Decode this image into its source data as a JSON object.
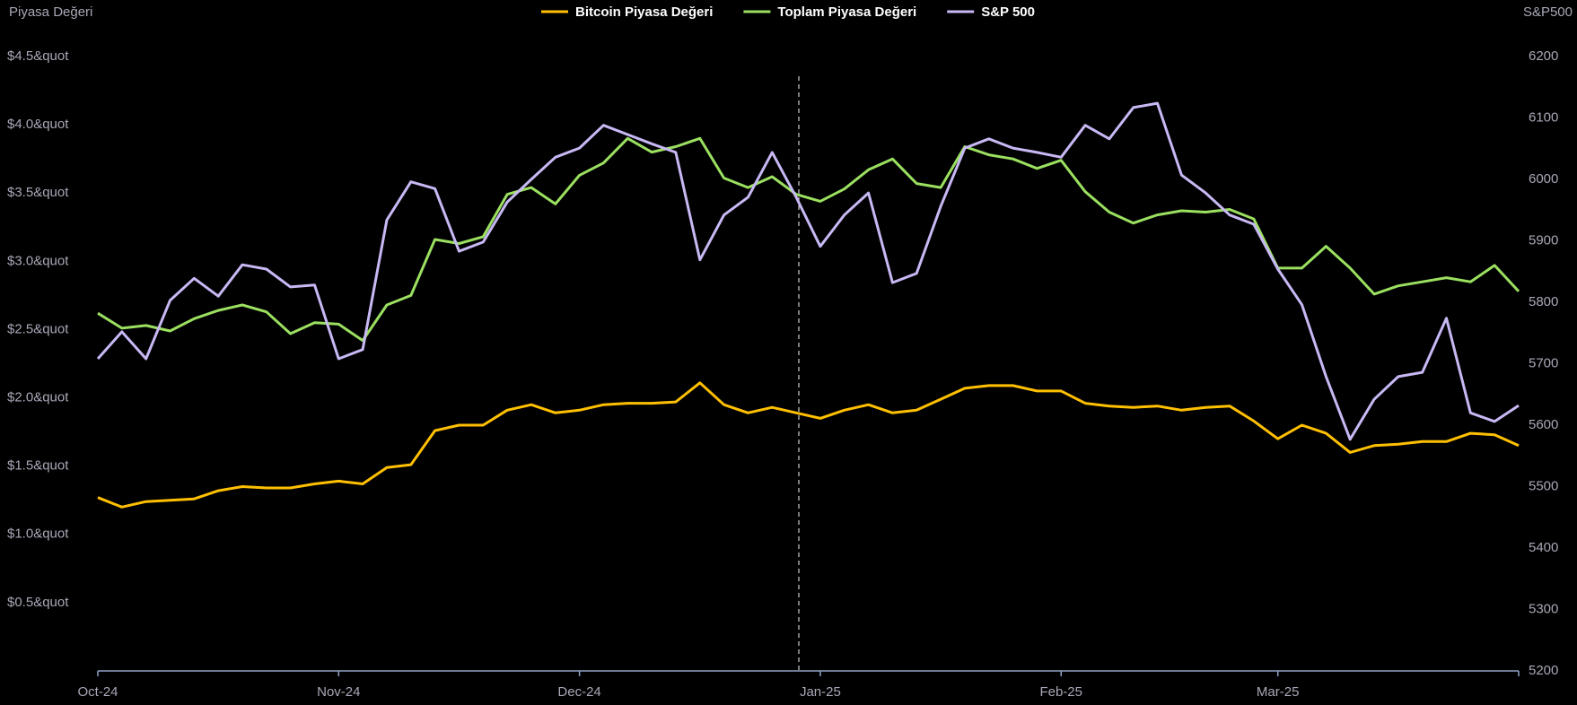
{
  "chart_data": {
    "type": "line",
    "y_label": "Piyasa Değeri",
    "y2_label": "S&P500",
    "legend": "top",
    "categories": [
      "Oct-24",
      null,
      null,
      null,
      null,
      null,
      null,
      null,
      null,
      null,
      "Nov-24",
      null,
      null,
      null,
      null,
      null,
      null,
      null,
      null,
      null,
      "Dec-24",
      null,
      null,
      null,
      null,
      null,
      null,
      null,
      null,
      null,
      "Jan-25",
      null,
      null,
      null,
      null,
      null,
      null,
      null,
      null,
      null,
      "Feb-25",
      null,
      null,
      null,
      null,
      null,
      null,
      null,
      null,
      "Mar-25",
      null,
      null,
      null,
      null,
      null,
      null,
      null,
      null,
      null,
      null
    ],
    "series": [
      {
        "name": "Bitcoin Piyasa Değeri",
        "color": "#ffc000",
        "values": [
          1.27,
          1.2,
          1.24,
          1.25,
          1.26,
          1.32,
          1.35,
          1.34,
          1.34,
          1.37,
          1.39,
          1.37,
          1.49,
          1.51,
          1.76,
          1.8,
          1.8,
          1.91,
          1.95,
          1.89,
          1.91,
          1.95,
          1.96,
          1.96,
          1.97,
          2.11,
          1.95,
          1.89,
          1.93,
          1.89,
          1.85,
          1.91,
          1.95,
          1.89,
          1.91,
          1.99,
          2.07,
          2.09,
          2.09,
          2.05,
          2.05,
          1.96,
          1.94,
          1.93,
          1.94,
          1.91,
          1.93,
          1.94,
          1.83,
          1.7,
          1.8,
          1.74,
          1.6,
          1.65,
          1.66,
          1.68,
          1.68,
          1.74,
          1.73,
          1.65
        ]
      },
      {
        "name": "Toplam Piyasa Değeri",
        "color": "#9be060",
        "values": [
          2.62,
          2.51,
          2.53,
          2.49,
          2.58,
          2.64,
          2.68,
          2.63,
          2.47,
          2.55,
          2.54,
          2.42,
          2.68,
          2.75,
          3.16,
          3.13,
          3.18,
          3.49,
          3.54,
          3.42,
          3.63,
          3.72,
          3.9,
          3.8,
          3.84,
          3.9,
          3.61,
          3.54,
          3.62,
          3.49,
          3.44,
          3.53,
          3.67,
          3.75,
          3.57,
          3.54,
          3.84,
          3.78,
          3.75,
          3.68,
          3.74,
          3.51,
          3.36,
          3.28,
          3.34,
          3.37,
          3.36,
          3.38,
          3.31,
          2.95,
          2.95,
          3.11,
          2.95,
          2.76,
          2.82,
          2.85,
          2.88,
          2.85,
          2.97,
          2.78
        ]
      },
      {
        "name": "S&P 500",
        "color": "#c8b8f4",
        "axis": "y2",
        "values": [
          5708,
          5752,
          5708,
          5803,
          5839,
          5810,
          5861,
          5854,
          5825,
          5828,
          5708,
          5723,
          5934,
          5996,
          5985,
          5883,
          5898,
          5963,
          6000,
          6036,
          6051,
          6088,
          6073,
          6058,
          6044,
          5869,
          5942,
          5971,
          6044,
          5971,
          5891,
          5942,
          5978,
          5832,
          5847,
          5956,
          6051,
          6066,
          6051,
          6044,
          6036,
          6088,
          6066,
          6117,
          6124,
          6007,
          5978,
          5942,
          5927,
          5854,
          5796,
          5679,
          5577,
          5642,
          5679,
          5686,
          5774,
          5620,
          5606,
          5632
        ]
      }
    ],
    "ylim": [
      0,
      4.5
    ],
    "yticks": [
      {
        "value": 0.5,
        "label": "$0.5&quot"
      },
      {
        "value": 1.0,
        "label": "$1.0&quot"
      },
      {
        "value": 1.5,
        "label": "$1.5&quot"
      },
      {
        "value": 2.0,
        "label": "$2.0&quot"
      },
      {
        "value": 2.5,
        "label": "$2.5&quot"
      },
      {
        "value": 3.0,
        "label": "$3.0&quot"
      },
      {
        "value": 3.5,
        "label": "$3.5&quot"
      },
      {
        "value": 4.0,
        "label": "$4.0&quot"
      },
      {
        "value": 4.5,
        "label": "$4.5&quot"
      }
    ],
    "y2lim": [
      5200,
      6200
    ],
    "y2ticks": [
      5200,
      5300,
      5400,
      5500,
      5600,
      5700,
      5800,
      5900,
      6000,
      6100,
      6200
    ]
  }
}
